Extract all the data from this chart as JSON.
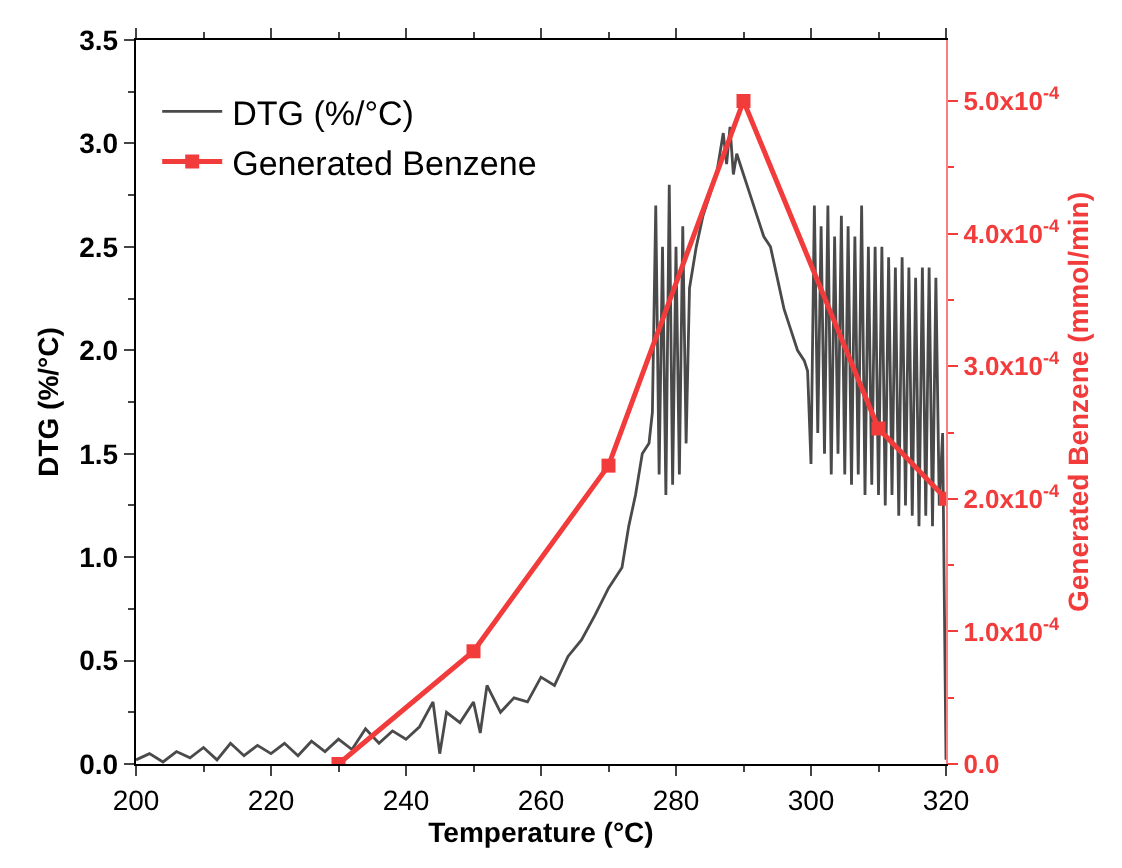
{
  "chart_data": {
    "type": "line",
    "xlabel": "Temperature (°C)",
    "ylabel": "DTG (%/°C)",
    "y2label": "Generated Benzene (mmol/min)",
    "xlim": [
      200,
      320
    ],
    "xticks": [
      200,
      220,
      240,
      260,
      280,
      300,
      320
    ],
    "ylim": [
      0,
      3.5
    ],
    "yticks": [
      {
        "value": 0,
        "label": "0.0"
      },
      {
        "value": 0.5,
        "label": "0.5"
      },
      {
        "value": 1.0,
        "label": "1.0"
      },
      {
        "value": 1.5,
        "label": "1.5"
      },
      {
        "value": 2.0,
        "label": "2.0"
      },
      {
        "value": 2.5,
        "label": "2.5"
      },
      {
        "value": 3.0,
        "label": "3.0"
      },
      {
        "value": 3.5,
        "label": "3.5"
      }
    ],
    "y2lim": [
      0,
      0.000546
    ],
    "y2ticks": [
      {
        "value": 0,
        "label": "0.0"
      },
      {
        "value": 0.0001,
        "label": "1.0x10$^{-4}$"
      },
      {
        "value": 0.0002,
        "label": "2.0x10$^{-4}$"
      },
      {
        "value": 0.0003,
        "label": "3.0x10$^{-4}$"
      },
      {
        "value": 0.0004,
        "label": "4.0x10$^{-4}$"
      },
      {
        "value": 0.0005,
        "label": "5.0x10$^{-4}$"
      }
    ],
    "legend": "top left",
    "series": [
      {
        "name": "DTG (%/°C)",
        "color": "#4a4a4a",
        "marker": "none",
        "x": [
          200,
          202,
          204,
          206,
          208,
          210,
          212,
          214,
          216,
          218,
          220,
          222,
          224,
          226,
          228,
          230,
          232,
          234,
          236,
          238,
          240,
          242,
          244,
          245,
          246,
          248,
          250,
          251,
          252,
          254,
          256,
          258,
          260,
          262,
          264,
          266,
          268,
          270,
          272,
          273,
          274,
          275,
          276,
          276.5,
          277,
          277.5,
          278,
          278.5,
          279,
          279.5,
          280,
          280.5,
          281,
          281.5,
          282,
          283,
          284,
          285,
          286,
          287,
          287.5,
          288,
          288.5,
          289,
          290,
          291,
          292,
          293,
          294,
          295,
          296,
          297,
          298,
          299,
          299.5,
          300,
          300.5,
          301,
          301.5,
          302,
          302.5,
          303,
          303.5,
          304,
          304.5,
          305,
          305.5,
          306,
          306.5,
          307,
          307.5,
          308,
          308.5,
          309,
          309.5,
          310,
          310.5,
          311,
          311.5,
          312,
          312.5,
          313,
          313.5,
          314,
          314.5,
          315,
          315.5,
          316,
          316.5,
          317,
          317.5,
          318,
          318.5,
          319,
          319.5,
          320
        ],
        "values": [
          0.02,
          0.05,
          0.01,
          0.06,
          0.03,
          0.08,
          0.02,
          0.1,
          0.04,
          0.09,
          0.05,
          0.1,
          0.04,
          0.11,
          0.06,
          0.12,
          0.07,
          0.17,
          0.1,
          0.16,
          0.12,
          0.18,
          0.3,
          0.05,
          0.25,
          0.2,
          0.3,
          0.15,
          0.38,
          0.25,
          0.32,
          0.3,
          0.42,
          0.38,
          0.52,
          0.6,
          0.72,
          0.85,
          0.95,
          1.15,
          1.3,
          1.5,
          1.55,
          1.7,
          2.7,
          1.4,
          2.5,
          1.3,
          2.8,
          1.35,
          2.5,
          1.4,
          2.6,
          1.55,
          2.3,
          2.5,
          2.65,
          2.75,
          2.85,
          3.05,
          2.9,
          3.08,
          2.85,
          2.95,
          2.85,
          2.75,
          2.65,
          2.55,
          2.5,
          2.35,
          2.2,
          2.1,
          2.0,
          1.95,
          1.9,
          1.45,
          2.7,
          1.6,
          2.6,
          1.5,
          2.7,
          1.4,
          2.55,
          1.5,
          2.65,
          1.4,
          2.6,
          1.35,
          2.55,
          1.4,
          2.7,
          1.3,
          2.5,
          1.35,
          2.5,
          1.3,
          2.5,
          1.25,
          2.45,
          1.3,
          2.4,
          1.2,
          2.45,
          1.25,
          2.4,
          1.2,
          2.35,
          1.15,
          2.4,
          1.2,
          2.4,
          1.15,
          2.35,
          1.25,
          1.6,
          0.02
        ]
      },
      {
        "name": "Generated Benzene",
        "color": "#f23c3c",
        "marker": "square",
        "axis": "y2",
        "x": [
          230,
          250,
          270,
          290,
          310,
          320
        ],
        "values": [
          0,
          8.5e-05,
          0.000225,
          0.0005,
          0.000253,
          0.0002
        ]
      }
    ]
  }
}
